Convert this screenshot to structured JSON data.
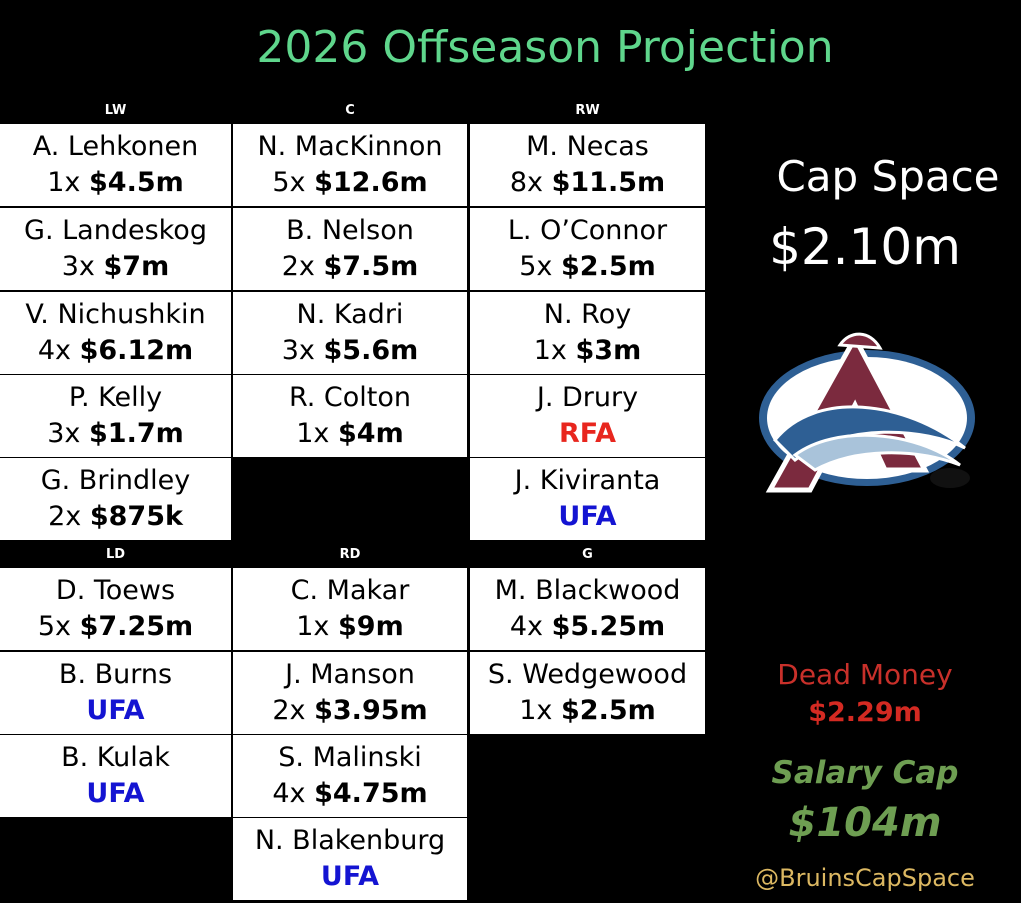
{
  "header": {
    "title": "2026 Offseason Projection"
  },
  "forwards": [
    {
      "position": "LW",
      "players": [
        {
          "name": "A. Lehkonen",
          "term": "1x",
          "amount": "$4.5m"
        },
        {
          "name": "G. Landeskog",
          "term": "3x",
          "amount": "$7m"
        },
        {
          "name": "V. Nichushkin",
          "term": "4x",
          "amount": "$6.12m"
        },
        {
          "name": "P. Kelly",
          "term": "3x",
          "amount": "$1.7m"
        },
        {
          "name": "G. Brindley",
          "term": "2x",
          "amount": "$875k"
        }
      ]
    },
    {
      "position": "C",
      "players": [
        {
          "name": "N. MacKinnon",
          "term": "5x",
          "amount": "$12.6m"
        },
        {
          "name": "B. Nelson",
          "term": "2x",
          "amount": "$7.5m"
        },
        {
          "name": "N. Kadri",
          "term": "3x",
          "amount": "$5.6m"
        },
        {
          "name": "R. Colton",
          "term": "1x",
          "amount": "$4m"
        }
      ]
    },
    {
      "position": "RW",
      "players": [
        {
          "name": "M. Necas",
          "term": "8x",
          "amount": "$11.5m"
        },
        {
          "name": "L. O’Connor",
          "term": "5x",
          "amount": "$2.5m"
        },
        {
          "name": "N. Roy",
          "term": "1x",
          "amount": "$3m"
        },
        {
          "name": "J. Drury",
          "status": "RFA",
          "color": "#e8261e"
        },
        {
          "name": "J. Kiviranta",
          "status": "UFA",
          "color": "#1414d2"
        }
      ]
    }
  ],
  "defense": [
    {
      "position": "LD",
      "players": [
        {
          "name": "D. Toews",
          "term": "5x",
          "amount": "$7.25m"
        },
        {
          "name": "B. Burns",
          "status": "UFA",
          "color": "#1414d2"
        },
        {
          "name": "B. Kulak",
          "status": "UFA",
          "color": "#1414d2"
        }
      ]
    },
    {
      "position": "RD",
      "players": [
        {
          "name": "C. Makar",
          "term": "1x",
          "amount": "$9m"
        },
        {
          "name": "J. Manson",
          "term": "2x",
          "amount": "$3.95m"
        },
        {
          "name": "S. Malinski",
          "term": "4x",
          "amount": "$4.75m"
        },
        {
          "name": "N. Blakenburg",
          "status": "UFA",
          "color": "#1414d2"
        }
      ]
    },
    {
      "position": "G",
      "players": [
        {
          "name": "M. Blackwood",
          "term": "4x",
          "amount": "$5.25m"
        },
        {
          "name": "S. Wedgewood",
          "term": "1x",
          "amount": "$2.5m"
        }
      ]
    }
  ],
  "sidebar": {
    "cap_space": {
      "label": "Cap Space",
      "value": "$2.10m"
    },
    "dead_money": {
      "label": "Dead Money",
      "value": "$2.29m"
    },
    "salary_cap": {
      "label": "Salary Cap",
      "value": "$104m"
    },
    "credit": "@BruinsCapSpace"
  }
}
